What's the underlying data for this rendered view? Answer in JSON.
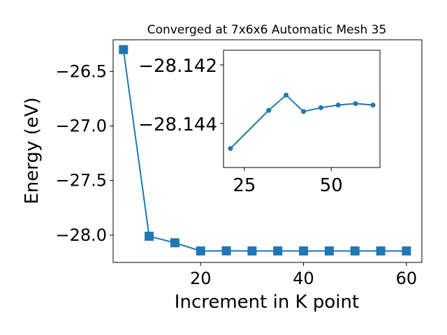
{
  "chart_data": [
    {
      "type": "line",
      "title": "Converged at 7x6x6 Automatic Mesh 35",
      "xlabel": "Increment in K point",
      "ylabel": "Energy (eV)",
      "xlim": [
        3,
        63
      ],
      "ylim": [
        -28.25,
        -26.21
      ],
      "x_ticks": [
        20,
        40,
        60
      ],
      "x_tick_labels": [
        "20",
        "40",
        "60"
      ],
      "y_ticks": [
        -26.5,
        -27.0,
        -27.5,
        -28.0
      ],
      "y_tick_labels": [
        "−26.5",
        "−27.0",
        "−27.5",
        "−28.0"
      ],
      "marker": "square",
      "color": "#1f77b4",
      "grid": false,
      "series": [
        {
          "x": [
            5,
            10,
            15,
            20,
            25,
            30,
            35,
            40,
            45,
            50,
            55,
            60
          ],
          "values": [
            -26.3,
            -28.01,
            -28.07,
            -28.145,
            -28.144,
            -28.145,
            -28.145,
            -28.145,
            -28.145,
            -28.145,
            -28.145,
            -28.145
          ]
        }
      ]
    },
    {
      "type": "line",
      "title": "",
      "xlabel": "",
      "ylabel": "",
      "xlim": [
        19,
        64
      ],
      "ylim": [
        -28.1455,
        -28.1415
      ],
      "x_ticks": [
        25,
        50
      ],
      "x_tick_labels": [
        "25",
        "50"
      ],
      "y_ticks": [
        -28.144,
        -28.142
      ],
      "y_tick_labels": [
        "−28.144",
        "−28.142"
      ],
      "marker": "circle",
      "color": "#1f77b4",
      "grid": false,
      "series": [
        {
          "x": [
            21,
            32,
            37,
            42,
            47,
            52,
            57,
            62
          ],
          "values": [
            -28.14485,
            -28.14355,
            -28.14303,
            -28.14359,
            -28.14346,
            -28.14337,
            -28.14332,
            -28.14337
          ]
        }
      ]
    }
  ]
}
